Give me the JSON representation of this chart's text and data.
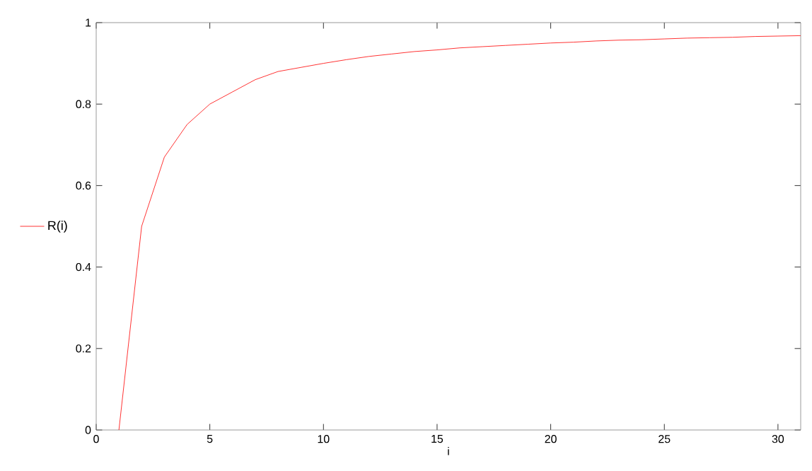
{
  "chart_data": {
    "type": "line",
    "xlabel": "i",
    "x": [
      1,
      2,
      3,
      4,
      5,
      6,
      7,
      8,
      9,
      10,
      11,
      12,
      13,
      14,
      15,
      16,
      17,
      18,
      19,
      20,
      21,
      22,
      23,
      24,
      25,
      26,
      27,
      28,
      29,
      30,
      31
    ],
    "series": [
      {
        "name": "R(i)",
        "color": "#ff0000",
        "values": [
          0,
          0.5,
          0.67,
          0.75,
          0.8,
          0.83,
          0.86,
          0.88,
          0.89,
          0.9,
          0.909,
          0.917,
          0.923,
          0.929,
          0.933,
          0.938,
          0.941,
          0.944,
          0.947,
          0.95,
          0.952,
          0.955,
          0.957,
          0.958,
          0.96,
          0.962,
          0.963,
          0.964,
          0.966,
          0.967,
          0.968
        ]
      }
    ],
    "xlim": [
      0,
      31
    ],
    "ylim": [
      0,
      1
    ],
    "xticks": [
      0,
      5,
      10,
      15,
      20,
      25,
      30
    ],
    "yticks": [
      0,
      0.2,
      0.4,
      0.6,
      0.8,
      1
    ],
    "legend": "left",
    "grid": false,
    "marker": "none",
    "line_style": "solid"
  }
}
